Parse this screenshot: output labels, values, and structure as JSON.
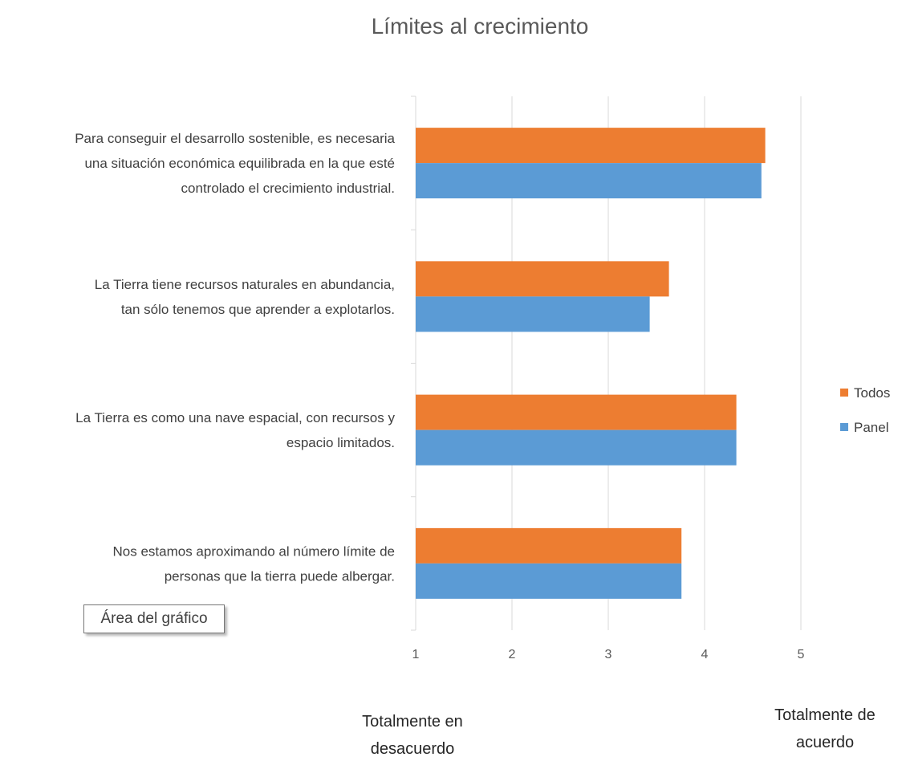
{
  "chart_data": {
    "type": "bar",
    "orientation": "horizontal",
    "title": "Límites al crecimiento",
    "categories": [
      [
        "Para conseguir el desarrollo sostenible, es necesaria",
        "una situación económica equilibrada en la que esté",
        "controlado el crecimiento industrial."
      ],
      [
        "La Tierra tiene recursos naturales en abundancia,",
        "tan sólo tenemos que aprender a explotarlos."
      ],
      [
        "La Tierra es como una nave espacial, con recursos y",
        "espacio limitados."
      ],
      [
        "Nos estamos aproximando al número límite de",
        "personas que la tierra puede albergar."
      ]
    ],
    "series": [
      {
        "name": "Todos",
        "color": "#ED7D31",
        "values": [
          4.63,
          3.63,
          4.33,
          3.76
        ]
      },
      {
        "name": "Panel",
        "color": "#5B9BD5",
        "values": [
          4.59,
          3.43,
          4.33,
          3.76
        ]
      }
    ],
    "xlim": [
      1,
      5
    ],
    "xticks": [
      "1",
      "2",
      "3",
      "4",
      "5"
    ],
    "grid": true,
    "legend_position": "right",
    "xaxis_low_label": [
      "Totalmente en",
      "desacuerdo"
    ],
    "xaxis_high_label": [
      "Totalmente de",
      "acuerdo"
    ]
  },
  "tooltip": {
    "text": "Área del gráfico"
  }
}
